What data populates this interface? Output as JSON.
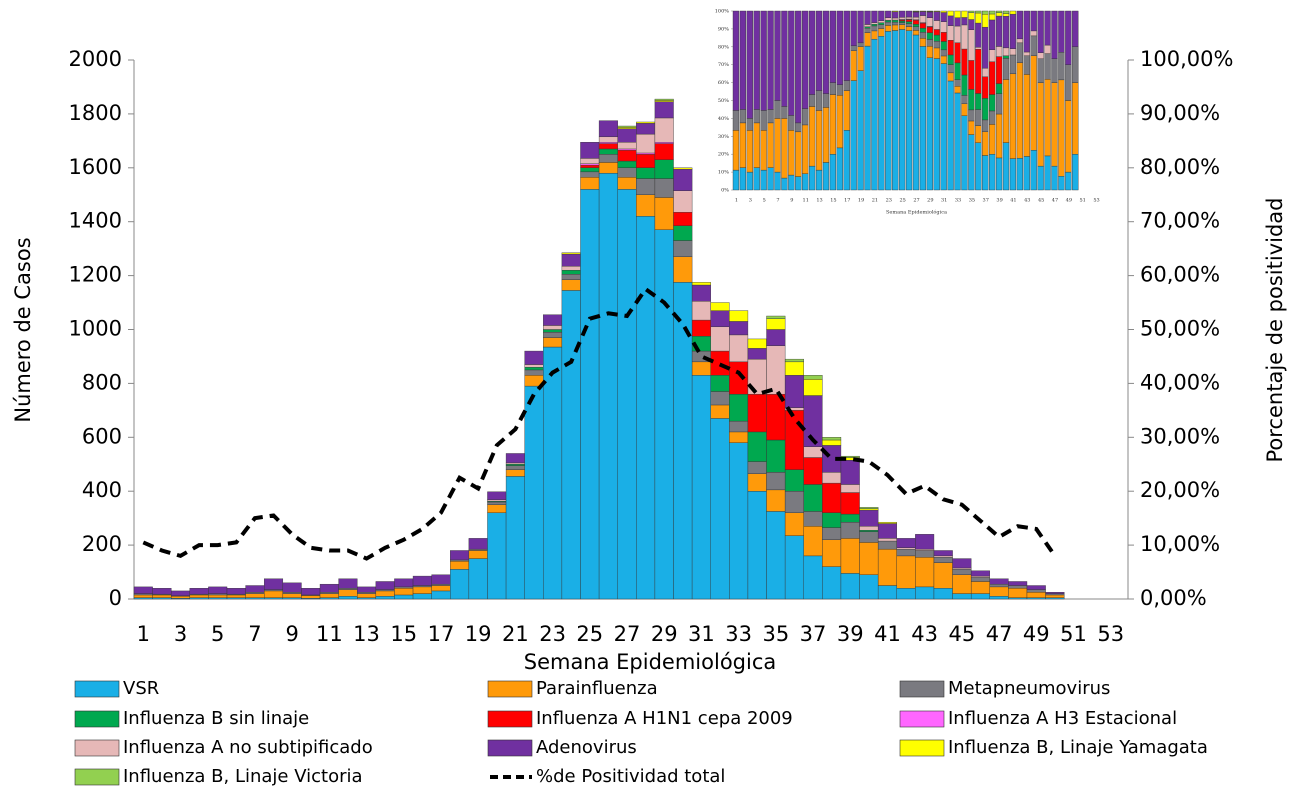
{
  "chart_data": [
    {
      "type": "bar",
      "stacking": "normal",
      "xlabel": "Semana Epidemiológica",
      "ylabel": "Número de Casos",
      "y2label": "Porcentaje  de positividad",
      "categories": [
        "1",
        null,
        "3",
        null,
        "5",
        null,
        "7",
        null,
        "9",
        null,
        "11",
        null,
        "13",
        null,
        "15",
        null,
        "17",
        null,
        "19",
        null,
        "21",
        null,
        "23",
        null,
        "25",
        null,
        "27",
        null,
        "29",
        null,
        "31",
        null,
        "33",
        null,
        "35",
        null,
        "37",
        null,
        "39",
        null,
        "41",
        null,
        "43",
        null,
        "45",
        null,
        "47",
        null,
        "49",
        null,
        "51",
        null,
        "53"
      ],
      "ylim": [
        0,
        2000
      ],
      "yticks": [
        0,
        200,
        400,
        600,
        800,
        1000,
        1200,
        1400,
        1600,
        1800,
        2000
      ],
      "y2lim": [
        0,
        100
      ],
      "y2ticks": [
        {
          "value": 0,
          "label": "0,00%"
        },
        {
          "value": 10,
          "label": "10,00%"
        },
        {
          "value": 20,
          "label": "20,00%"
        },
        {
          "value": 30,
          "label": "30,00%"
        },
        {
          "value": 40,
          "label": "40,00%"
        },
        {
          "value": 50,
          "label": "50,00%"
        },
        {
          "value": 60,
          "label": "60,00%"
        },
        {
          "value": 70,
          "label": "70,00%"
        },
        {
          "value": 80,
          "label": "80,00%"
        },
        {
          "value": 90,
          "label": "90,00%"
        },
        {
          "value": 100,
          "label": "100,00%"
        }
      ],
      "grid": false,
      "legend": "bottom",
      "series": [
        {
          "name": "VSR",
          "color": "#1aafe6",
          "values": [
            5,
            5,
            3,
            5,
            5,
            5,
            5,
            5,
            5,
            3,
            5,
            10,
            5,
            10,
            15,
            20,
            30,
            110,
            150,
            320,
            455,
            790,
            935,
            1145,
            1520,
            1580,
            1520,
            1420,
            1370,
            1175,
            830,
            670,
            580,
            400,
            325,
            235,
            160,
            120,
            95,
            90,
            50,
            40,
            45,
            40,
            20,
            20,
            10,
            5,
            5,
            5,
            0,
            0,
            0
          ]
        },
        {
          "name": "Parainfluenza",
          "color": "#ff9a0a",
          "values": [
            10,
            10,
            7,
            10,
            10,
            10,
            15,
            25,
            15,
            10,
            15,
            25,
            15,
            20,
            25,
            25,
            20,
            30,
            30,
            30,
            25,
            40,
            35,
            40,
            45,
            40,
            45,
            80,
            120,
            95,
            50,
            50,
            40,
            65,
            80,
            85,
            110,
            100,
            130,
            120,
            135,
            120,
            110,
            95,
            70,
            45,
            35,
            35,
            20,
            10,
            0,
            0,
            0
          ]
        },
        {
          "name": "Metapneumovirus",
          "color": "#7a7a80",
          "values": [
            5,
            3,
            2,
            3,
            5,
            3,
            5,
            5,
            5,
            2,
            5,
            5,
            5,
            5,
            5,
            5,
            5,
            5,
            5,
            10,
            15,
            20,
            20,
            20,
            20,
            30,
            35,
            60,
            70,
            60,
            40,
            50,
            40,
            45,
            65,
            80,
            55,
            45,
            60,
            40,
            30,
            25,
            25,
            20,
            20,
            15,
            10,
            10,
            10,
            5,
            0,
            0,
            0
          ]
        },
        {
          "name": "Influenza B sin linaje",
          "color": "#00a84f",
          "values": [
            0,
            0,
            0,
            0,
            0,
            0,
            0,
            0,
            0,
            0,
            0,
            0,
            0,
            0,
            0,
            0,
            0,
            0,
            0,
            3,
            5,
            10,
            10,
            15,
            15,
            20,
            25,
            40,
            70,
            55,
            55,
            60,
            100,
            110,
            120,
            80,
            100,
            55,
            30,
            5,
            0,
            0,
            0,
            0,
            0,
            0,
            0,
            0,
            0,
            0,
            0,
            0,
            0
          ]
        },
        {
          "name": "Influenza A H1N1 cepa 2009",
          "color": "#ff0000",
          "values": [
            0,
            0,
            0,
            0,
            0,
            0,
            0,
            0,
            0,
            0,
            0,
            0,
            0,
            0,
            0,
            0,
            0,
            0,
            0,
            0,
            0,
            0,
            0,
            0,
            10,
            20,
            40,
            50,
            60,
            50,
            60,
            90,
            120,
            140,
            170,
            220,
            100,
            110,
            80,
            0,
            0,
            0,
            0,
            0,
            0,
            0,
            0,
            0,
            0,
            0,
            0,
            0,
            0
          ]
        },
        {
          "name": "Influenza A H3 Estacional",
          "color": "#ff66ff",
          "values": [
            0,
            0,
            0,
            0,
            0,
            0,
            0,
            0,
            0,
            0,
            0,
            0,
            0,
            0,
            0,
            0,
            0,
            0,
            0,
            0,
            0,
            0,
            0,
            0,
            5,
            5,
            5,
            5,
            5,
            0,
            0,
            0,
            0,
            0,
            0,
            0,
            0,
            0,
            0,
            0,
            0,
            0,
            0,
            0,
            0,
            0,
            0,
            0,
            0,
            0,
            0,
            0,
            0
          ]
        },
        {
          "name": "Influenza A no subtipificado",
          "color": "#e6b8b7",
          "values": [
            0,
            0,
            0,
            0,
            0,
            0,
            0,
            0,
            0,
            0,
            0,
            0,
            0,
            0,
            0,
            0,
            0,
            0,
            0,
            5,
            5,
            10,
            15,
            15,
            20,
            20,
            25,
            70,
            90,
            80,
            70,
            90,
            100,
            130,
            180,
            10,
            40,
            40,
            30,
            15,
            10,
            5,
            5,
            5,
            5,
            5,
            0,
            0,
            0,
            0,
            0,
            0,
            0
          ]
        },
        {
          "name": "Adenovirus",
          "color": "#7030a0",
          "values": [
            25,
            22,
            18,
            22,
            25,
            22,
            25,
            40,
            35,
            25,
            30,
            35,
            20,
            30,
            30,
            35,
            35,
            35,
            40,
            30,
            35,
            50,
            40,
            45,
            60,
            60,
            50,
            40,
            60,
            80,
            60,
            60,
            50,
            40,
            60,
            120,
            190,
            100,
            90,
            60,
            55,
            35,
            55,
            20,
            35,
            20,
            20,
            15,
            15,
            5,
            0,
            0,
            0
          ]
        },
        {
          "name": "Influenza B, Linaje Yamagata",
          "color": "#ffff00",
          "values": [
            0,
            0,
            0,
            0,
            0,
            0,
            0,
            0,
            0,
            0,
            0,
            0,
            0,
            0,
            0,
            0,
            0,
            0,
            0,
            0,
            0,
            0,
            0,
            5,
            0,
            0,
            5,
            5,
            5,
            5,
            10,
            30,
            40,
            35,
            40,
            50,
            60,
            20,
            10,
            5,
            5,
            0,
            0,
            0,
            0,
            0,
            0,
            0,
            0,
            0,
            0,
            0,
            0
          ]
        },
        {
          "name": "Influenza B, Linaje Victoria",
          "color": "#92d050",
          "values": [
            0,
            0,
            0,
            0,
            0,
            0,
            0,
            0,
            0,
            0,
            0,
            0,
            0,
            0,
            0,
            0,
            0,
            0,
            0,
            0,
            0,
            0,
            0,
            0,
            0,
            0,
            5,
            0,
            5,
            0,
            0,
            0,
            0,
            0,
            10,
            10,
            15,
            10,
            5,
            5,
            0,
            0,
            0,
            0,
            0,
            0,
            0,
            0,
            0,
            0,
            0,
            0,
            0
          ]
        },
        {
          "name": "%de Positividad total",
          "type": "line",
          "axis": "y2",
          "color": "#000000",
          "values": [
            10.5,
            9,
            8,
            10,
            10,
            10.5,
            15,
            15.5,
            12,
            9.5,
            9,
            9,
            7.5,
            9.5,
            11,
            13,
            16,
            22.5,
            20.5,
            28.5,
            31.5,
            38,
            42,
            44,
            52,
            53,
            52.5,
            57.5,
            55,
            51,
            45,
            43.5,
            42,
            38,
            39,
            33.5,
            29.5,
            26,
            26,
            25.5,
            23,
            19.5,
            21,
            18.5,
            17.5,
            14.5,
            11.5,
            13.5,
            13,
            8,
            null,
            null,
            null
          ]
        }
      ]
    },
    {
      "type": "bar",
      "stacking": "percent",
      "xlabel": "Semana Epidemiológica",
      "categories": [
        "1",
        null,
        "3",
        null,
        "5",
        null,
        "7",
        null,
        "9",
        null,
        "11",
        null,
        "13",
        null,
        "15",
        null,
        "17",
        null,
        "19",
        null,
        "21",
        null,
        "23",
        null,
        "25",
        null,
        "27",
        null,
        "29",
        null,
        "31",
        null,
        "33",
        null,
        "35",
        null,
        "37",
        null,
        "39",
        null,
        "41",
        null,
        "43",
        null,
        "45",
        null,
        "47",
        null,
        "49",
        null,
        "51",
        null,
        "53"
      ],
      "ylim": [
        0,
        100
      ],
      "yticks": [
        {
          "value": 0,
          "label": "0%"
        },
        {
          "value": 10,
          "label": "10%"
        },
        {
          "value": 20,
          "label": "20%"
        },
        {
          "value": 30,
          "label": "30%"
        },
        {
          "value": 40,
          "label": "40%"
        },
        {
          "value": 50,
          "label": "50%"
        },
        {
          "value": 60,
          "label": "60%"
        },
        {
          "value": 70,
          "label": "70%"
        },
        {
          "value": 80,
          "label": "80%"
        },
        {
          "value": 90,
          "label": "90%"
        },
        {
          "value": 100,
          "label": "100%"
        }
      ]
    }
  ]
}
